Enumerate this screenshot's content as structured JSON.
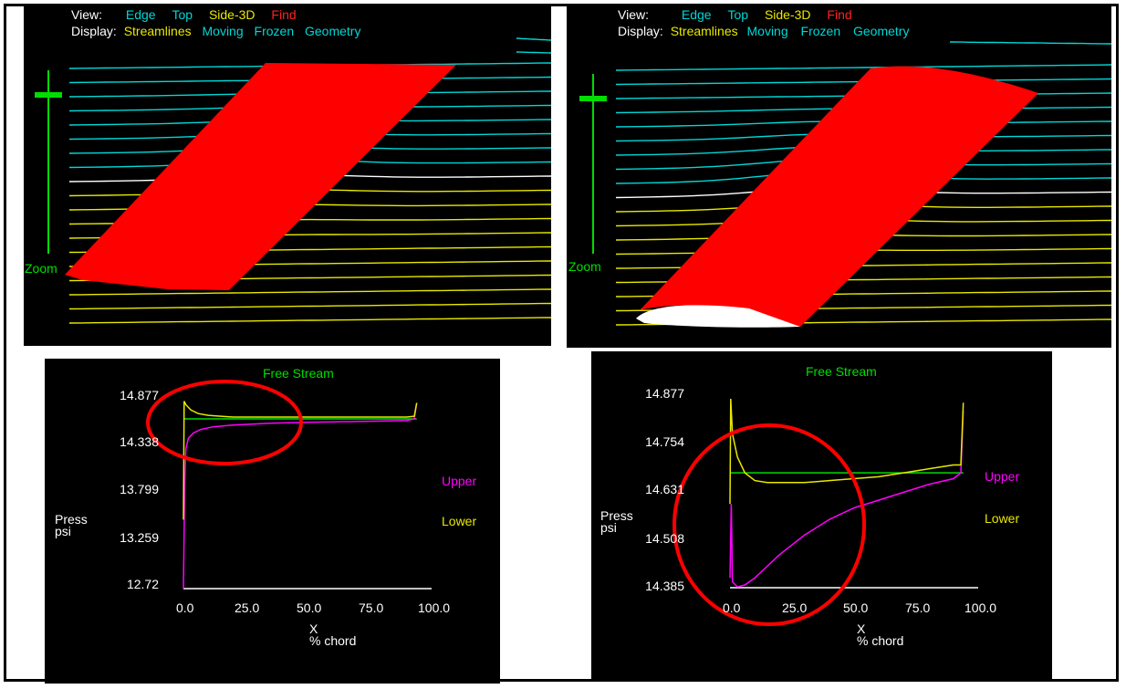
{
  "left_view": {
    "view_label": "View:",
    "view_options": [
      {
        "label": "Edge",
        "color": "#00d7d7"
      },
      {
        "label": "Top",
        "color": "#00d7d7"
      },
      {
        "label": "Side-3D",
        "color": "#e8e800"
      },
      {
        "label": "Find",
        "color": "#ff2020"
      }
    ],
    "display_label": "Display:",
    "display_options": [
      {
        "label": "Streamlines",
        "color": "#e8e800"
      },
      {
        "label": "Moving",
        "color": "#00d7d7"
      },
      {
        "label": "Frozen",
        "color": "#00d7d7"
      },
      {
        "label": "Geometry",
        "color": "#00d7d7"
      }
    ],
    "zoom_label": "Zoom"
  },
  "right_view": {
    "view_label": "View:",
    "view_options": [
      {
        "label": "Edge",
        "color": "#00d7d7"
      },
      {
        "label": "Top",
        "color": "#00d7d7"
      },
      {
        "label": "Side-3D",
        "color": "#e8e800"
      },
      {
        "label": "Find",
        "color": "#ff2020"
      }
    ],
    "display_label": "Display:",
    "display_options": [
      {
        "label": "Streamlines",
        "color": "#e8e800"
      },
      {
        "label": "Moving",
        "color": "#00d7d7"
      },
      {
        "label": "Frozen",
        "color": "#00d7d7"
      },
      {
        "label": "Geometry",
        "color": "#00d7d7"
      }
    ],
    "zoom_label": "Zoom"
  },
  "left_plot": {
    "free_stream_label": "Free Stream",
    "y_label": "Press\npsi",
    "y_ticks": [
      "14.877",
      "14.338",
      "13.799",
      "13.259",
      "12.72"
    ],
    "x_ticks": [
      "0.0",
      "25.0",
      "50.0",
      "75.0",
      "100.0"
    ],
    "x_label": "X\n% chord",
    "legend_upper": "Upper",
    "legend_lower": "Lower"
  },
  "right_plot": {
    "free_stream_label": "Free Stream",
    "y_label": "Press\npsi",
    "y_ticks": [
      "14.877",
      "14.754",
      "14.631",
      "14.508",
      "14.385"
    ],
    "x_ticks": [
      "0.0",
      "25.0",
      "50.0",
      "75.0",
      "100.0"
    ],
    "x_label": "X\n% chord",
    "legend_upper": "Upper",
    "legend_lower": "Lower"
  },
  "chart_data": [
    {
      "type": "line",
      "xlabel": "X % chord",
      "ylabel": "Press psi",
      "xlim": [
        0,
        100
      ],
      "ylim": [
        12.72,
        14.877
      ],
      "series": [
        {
          "name": "Upper",
          "color": "#ff00ff",
          "x": [
            0,
            0.5,
            1,
            2,
            4,
            7,
            12,
            20,
            35,
            50,
            70,
            90,
            93,
            94
          ],
          "y": [
            12.72,
            13.9,
            14.3,
            14.42,
            14.48,
            14.52,
            14.55,
            14.57,
            14.59,
            14.6,
            14.61,
            14.62,
            14.64,
            14.82
          ]
        },
        {
          "name": "Lower",
          "color": "#e8e800",
          "x": [
            0,
            0.3,
            1,
            3,
            6,
            10,
            15,
            20,
            30,
            50,
            70,
            90,
            93,
            94
          ],
          "y": [
            13.5,
            14.84,
            14.8,
            14.74,
            14.7,
            14.68,
            14.67,
            14.66,
            14.66,
            14.66,
            14.66,
            14.66,
            14.67,
            14.82
          ]
        }
      ],
      "free_stream": {
        "color": "#00dd00",
        "y": 14.64
      },
      "annotation": {
        "type": "red-circle",
        "color": "#ff0000"
      }
    },
    {
      "type": "line",
      "xlabel": "X % chord",
      "ylabel": "Press psi",
      "xlim": [
        0,
        100
      ],
      "ylim": [
        14.385,
        14.877
      ],
      "series": [
        {
          "name": "Upper",
          "color": "#ff00ff",
          "x": [
            0,
            0.5,
            1,
            3,
            6,
            10,
            15,
            20,
            30,
            40,
            50,
            60,
            70,
            80,
            90,
            93,
            94
          ],
          "y": [
            14.41,
            14.6,
            14.4,
            14.387,
            14.392,
            14.41,
            14.44,
            14.47,
            14.52,
            14.56,
            14.59,
            14.61,
            14.63,
            14.65,
            14.665,
            14.68,
            14.84
          ]
        },
        {
          "name": "Lower",
          "color": "#e8e800",
          "x": [
            0,
            0.3,
            1,
            3,
            6,
            10,
            15,
            20,
            30,
            40,
            50,
            60,
            70,
            80,
            90,
            93,
            94
          ],
          "y": [
            14.6,
            14.87,
            14.78,
            14.72,
            14.68,
            14.66,
            14.655,
            14.655,
            14.655,
            14.66,
            14.665,
            14.67,
            14.68,
            14.69,
            14.7,
            14.7,
            14.86
          ]
        }
      ],
      "free_stream": {
        "color": "#00dd00",
        "y": 14.68
      },
      "annotation": {
        "type": "red-circle",
        "color": "#ff0000"
      }
    }
  ]
}
